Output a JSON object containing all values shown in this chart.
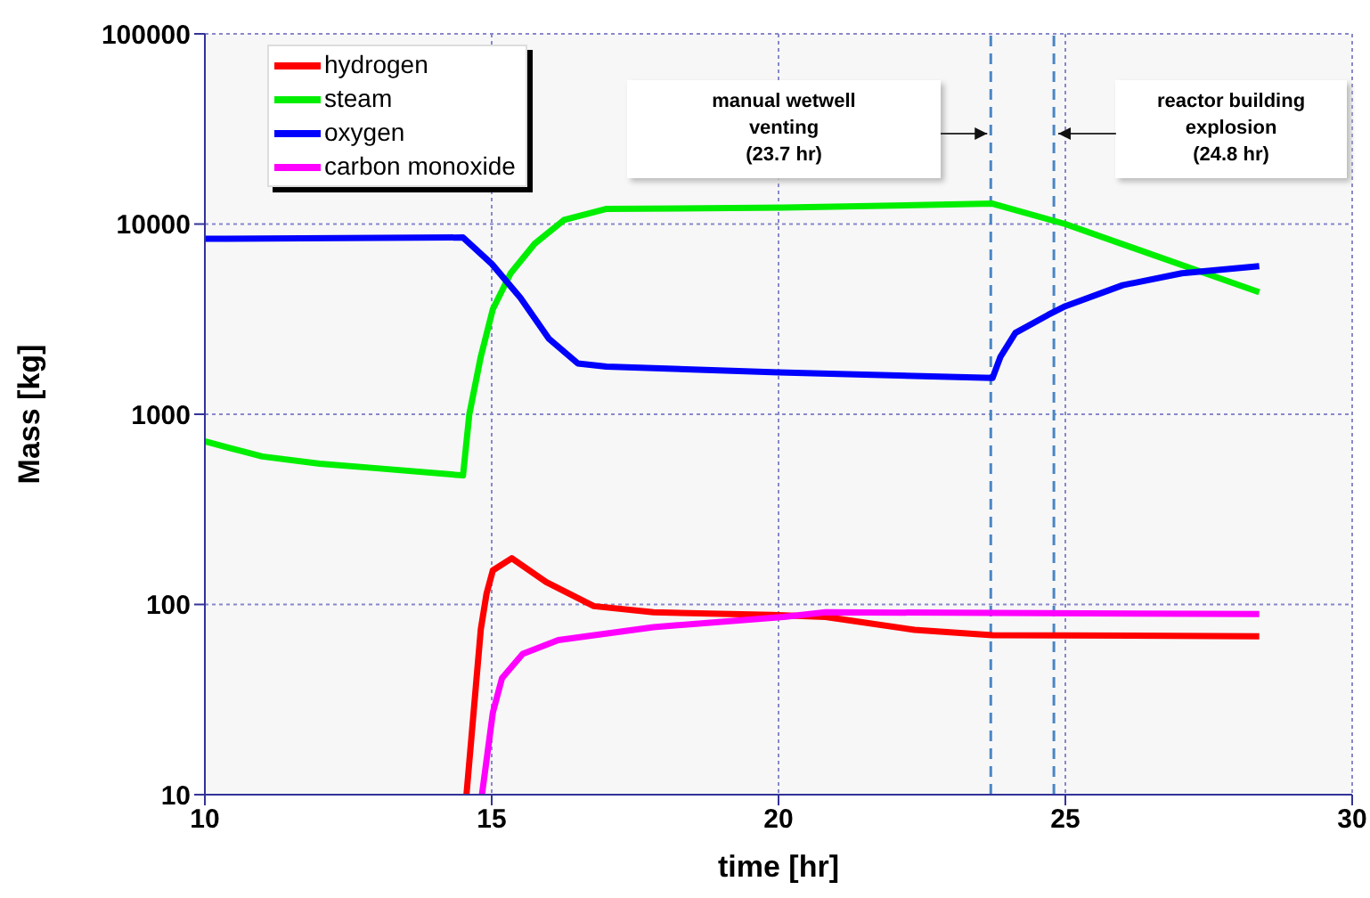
{
  "chart_data": {
    "type": "line",
    "xlabel": "time [hr]",
    "ylabel": "Mass [kg]",
    "xlim": [
      10,
      30
    ],
    "xticks": [
      10,
      15,
      20,
      25,
      30
    ],
    "ylim": [
      10,
      100000
    ],
    "yticks": [
      10,
      100,
      1000,
      10000,
      100000
    ],
    "log": "y",
    "grid": true,
    "legend": "top left",
    "marker": "none",
    "line_style": "solid",
    "series": [
      {
        "name": "hydrogen",
        "color": "#ff0000",
        "x": [
          14.56,
          14.81,
          14.91,
          15.02,
          15.35,
          15.95,
          16.78,
          17.82,
          19.89,
          20.82,
          22.37,
          23.73,
          28.38
        ],
        "values": [
          10,
          74,
          114,
          151,
          175,
          131,
          98,
          91,
          88,
          86,
          73.5,
          69,
          68
        ]
      },
      {
        "name": "steam",
        "color": "#00ee00",
        "x": [
          10,
          11,
          12,
          13,
          14.5,
          14.61,
          14.81,
          15.02,
          15.33,
          15.75,
          16.26,
          16.99,
          20.09,
          23.73,
          25,
          27.44,
          28.38
        ],
        "values": [
          720,
          600,
          550,
          520,
          477,
          1000,
          2010,
          3570,
          5510,
          7890,
          10500,
          12000,
          12200,
          12800,
          10000,
          5510,
          4380
        ]
      },
      {
        "name": "oxygen",
        "color": "#0000ff",
        "x": [
          10,
          14.5,
          15,
          15.5,
          16,
          16.5,
          17,
          20,
          23.73,
          23.87,
          24.13,
          24.7,
          25,
          26,
          27.03,
          28.38
        ],
        "values": [
          8360,
          8500,
          6180,
          4100,
          2490,
          1850,
          1780,
          1660,
          1550,
          2010,
          2680,
          3330,
          3700,
          4770,
          5510,
          6010
        ]
      },
      {
        "name": "carbon monoxide",
        "color": "#ff00ff",
        "x": [
          14.83,
          15.02,
          15.18,
          15.54,
          16.16,
          17.82,
          20.09,
          20.82,
          28.38
        ],
        "values": [
          10,
          27,
          41,
          55,
          65,
          76,
          86,
          91,
          89
        ]
      }
    ],
    "ref_lines": [
      {
        "axis": "x",
        "value": 23.7,
        "color": "#4a86c5",
        "line_style": "dashed"
      },
      {
        "axis": "x",
        "value": 24.8,
        "color": "#4a86c5",
        "line_style": "dashed"
      }
    ],
    "annotations": [
      "manual wetwell\nventing\n(23.7 hr)",
      "reactor building\nexplosion\n(24.8 hr)"
    ]
  }
}
